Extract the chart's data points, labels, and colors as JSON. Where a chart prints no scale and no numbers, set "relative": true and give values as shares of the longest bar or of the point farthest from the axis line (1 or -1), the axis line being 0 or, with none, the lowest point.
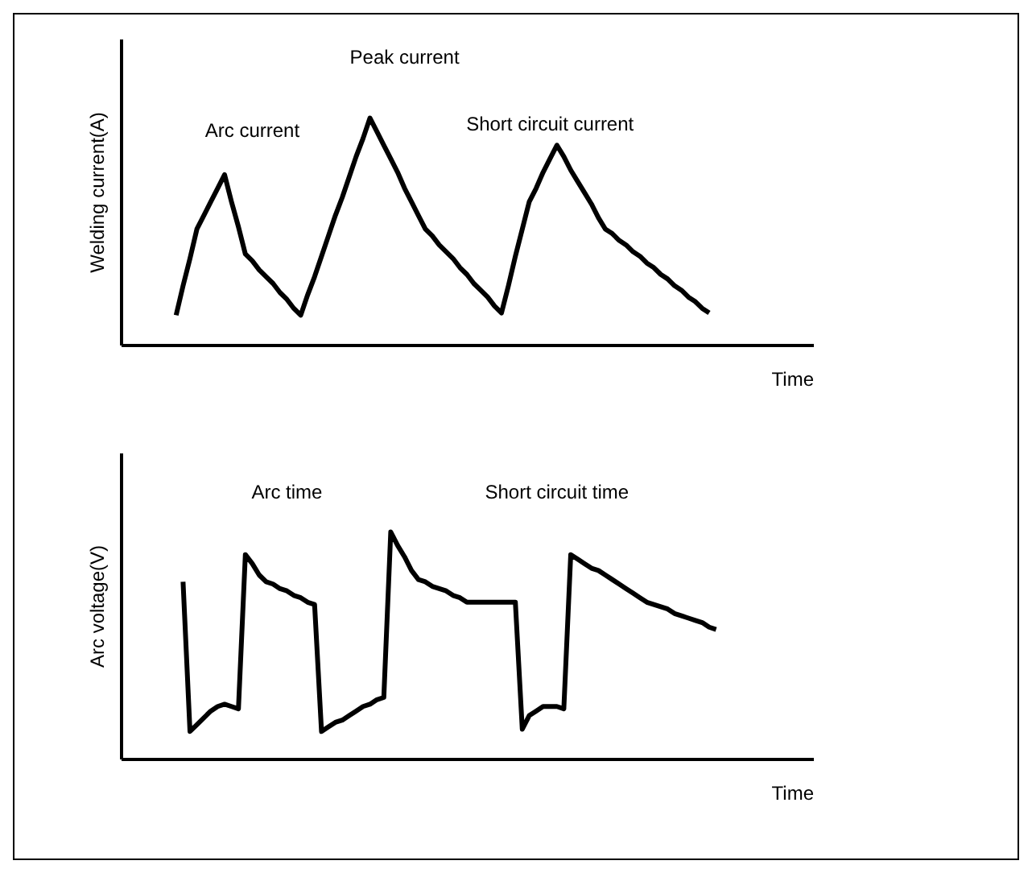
{
  "chart_data": [
    {
      "type": "line",
      "relative": true,
      "ylabel": "Welding current(A)",
      "xlabel": "Time",
      "categories": [
        null,
        null,
        null,
        null,
        null,
        null,
        null,
        null,
        null,
        null,
        null,
        null,
        null,
        null,
        null,
        null,
        null,
        null,
        null,
        null,
        null,
        null,
        null,
        null,
        null,
        null,
        null,
        null,
        null,
        null,
        null,
        null,
        null,
        null,
        null,
        null,
        null,
        null,
        null,
        null,
        null,
        null,
        null,
        null,
        null,
        null,
        null,
        null,
        null,
        null,
        null,
        null,
        null,
        null,
        null,
        null,
        null,
        null,
        null,
        null,
        null,
        null,
        null,
        null,
        null,
        null,
        null,
        null,
        null,
        null,
        null,
        null,
        null,
        null,
        null,
        null,
        null,
        null,
        null,
        null,
        null,
        null,
        null,
        null,
        null,
        null,
        null,
        null,
        null,
        null,
        null,
        null,
        null,
        null,
        null,
        null,
        null,
        null,
        null,
        null,
        null
      ],
      "series": [
        {
          "color": "#000000",
          "values": [
            null,
            null,
            null,
            null,
            null,
            null,
            null,
            null,
            0.13,
            0.26,
            0.38,
            0.51,
            0.57,
            0.63,
            0.69,
            0.75,
            0.63,
            0.52,
            0.4,
            0.37,
            0.33,
            0.3,
            0.27,
            0.23,
            0.2,
            0.16,
            0.13,
            0.22,
            0.3,
            0.39,
            0.48,
            0.57,
            0.65,
            0.74,
            0.83,
            0.91,
            1,
            0.94,
            0.88,
            0.82,
            0.76,
            0.69,
            0.63,
            0.57,
            0.51,
            0.48,
            0.44,
            0.41,
            0.38,
            0.34,
            0.31,
            0.27,
            0.24,
            0.21,
            0.17,
            0.14,
            0.26,
            0.39,
            0.51,
            0.63,
            0.69,
            0.76,
            0.82,
            0.88,
            0.83,
            0.77,
            0.72,
            0.67,
            0.62,
            0.56,
            0.51,
            0.49,
            0.46,
            0.44,
            0.41,
            0.39,
            0.36,
            0.34,
            0.31,
            0.29,
            0.26,
            0.24,
            0.21,
            0.19,
            0.16,
            0.14,
            null,
            null,
            null,
            null,
            null,
            null,
            null,
            null,
            null,
            null,
            null,
            null,
            null,
            null,
            null
          ]
        }
      ],
      "annotations": [
        "Arc current",
        "Peak current",
        "Short circuit current"
      ]
    },
    {
      "type": "line",
      "relative": true,
      "ylabel": "Arc voltage(V)",
      "xlabel": "Time",
      "categories": [
        null,
        null,
        null,
        null,
        null,
        null,
        null,
        null,
        null,
        null,
        null,
        null,
        null,
        null,
        null,
        null,
        null,
        null,
        null,
        null,
        null,
        null,
        null,
        null,
        null,
        null,
        null,
        null,
        null,
        null,
        null,
        null,
        null,
        null,
        null,
        null,
        null,
        null,
        null,
        null,
        null,
        null,
        null,
        null,
        null,
        null,
        null,
        null,
        null,
        null,
        null,
        null,
        null,
        null,
        null,
        null,
        null,
        null,
        null,
        null,
        null,
        null,
        null,
        null,
        null,
        null,
        null,
        null,
        null,
        null,
        null,
        null,
        null,
        null,
        null,
        null,
        null,
        null,
        null,
        null,
        null,
        null,
        null,
        null,
        null,
        null,
        null,
        null,
        null,
        null,
        null,
        null,
        null,
        null,
        null,
        null,
        null,
        null,
        null,
        null,
        null
      ],
      "series": [
        {
          "color": "#000000",
          "values": [
            null,
            null,
            null,
            null,
            null,
            null,
            null,
            null,
            null,
            0.78,
            0.12,
            0.15,
            0.18,
            0.21,
            0.23,
            0.24,
            0.23,
            0.22,
            0.9,
            0.86,
            0.81,
            0.78,
            0.77,
            0.75,
            0.74,
            0.72,
            0.71,
            0.69,
            0.68,
            0.12,
            0.14,
            0.16,
            0.17,
            0.19,
            0.21,
            0.23,
            0.24,
            0.26,
            0.27,
            1,
            0.94,
            0.89,
            0.83,
            0.79,
            0.78,
            0.76,
            0.75,
            0.74,
            0.72,
            0.71,
            0.69,
            0.69,
            0.69,
            0.69,
            0.69,
            0.69,
            0.69,
            0.69,
            0.13,
            0.19,
            0.21,
            0.23,
            0.23,
            0.23,
            0.22,
            0.9,
            0.88,
            0.86,
            0.84,
            0.83,
            0.81,
            0.79,
            0.77,
            0.75,
            0.73,
            0.71,
            0.69,
            0.68,
            0.67,
            0.66,
            0.64,
            0.63,
            0.62,
            0.61,
            0.6,
            0.58,
            0.57,
            null,
            null,
            null,
            null,
            null,
            null,
            null,
            null,
            null,
            null,
            null,
            null,
            null,
            null
          ]
        }
      ],
      "annotations": [
        "Arc time",
        "Short circuit time"
      ]
    }
  ]
}
